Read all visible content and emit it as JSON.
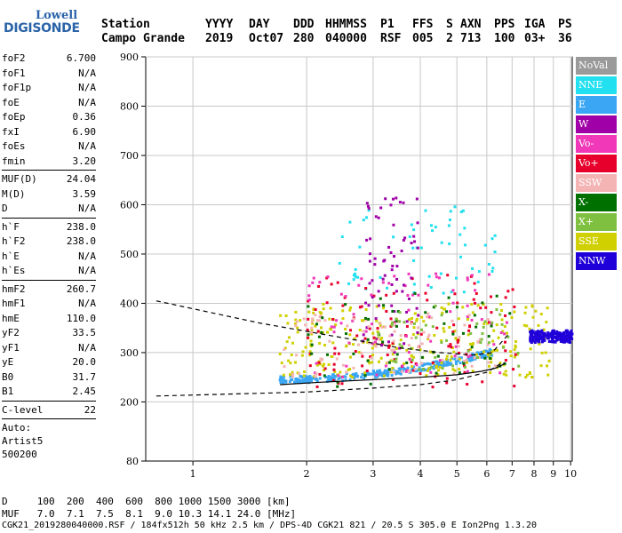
{
  "logo": {
    "line1": "Lowell",
    "line2": "DIGISONDE"
  },
  "header": {
    "labels": [
      "Station",
      "YYYY",
      "DAY",
      "DDD",
      "HHMMSS",
      "P1",
      "FFS",
      "S",
      "AXN",
      "PPS",
      "IGA",
      "PS"
    ],
    "values": [
      "Campo Grande",
      "2019",
      "Oct07",
      "280",
      "040000",
      "RSF",
      "005",
      "2",
      "713",
      "100",
      "03+",
      "36"
    ]
  },
  "params_group1": [
    {
      "name": "foF2",
      "value": "6.700"
    },
    {
      "name": "foF1",
      "value": "N/A"
    },
    {
      "name": "foF1p",
      "value": "N/A"
    },
    {
      "name": "foE",
      "value": "N/A"
    },
    {
      "name": "foEp",
      "value": "0.36"
    },
    {
      "name": "fxI",
      "value": "6.90"
    },
    {
      "name": "foEs",
      "value": "N/A"
    },
    {
      "name": "fmin",
      "value": "3.20"
    }
  ],
  "params_group2": [
    {
      "name": "MUF(D)",
      "value": "24.04"
    },
    {
      "name": "M(D)",
      "value": "3.59"
    },
    {
      "name": "D",
      "value": "N/A"
    }
  ],
  "params_group3": [
    {
      "name": "h`F",
      "value": "238.0"
    },
    {
      "name": "h`F2",
      "value": "238.0"
    },
    {
      "name": "h`E",
      "value": "N/A"
    },
    {
      "name": "h`Es",
      "value": "N/A"
    }
  ],
  "params_group4": [
    {
      "name": "hmF2",
      "value": "260.7"
    },
    {
      "name": "hmF1",
      "value": "N/A"
    },
    {
      "name": "hmE",
      "value": "110.0"
    },
    {
      "name": "yF2",
      "value": "33.5"
    },
    {
      "name": "yF1",
      "value": "N/A"
    },
    {
      "name": "yE",
      "value": "20.0"
    },
    {
      "name": "B0",
      "value": "31.7"
    },
    {
      "name": "B1",
      "value": "2.45"
    }
  ],
  "params_group5": [
    {
      "name": "C-level",
      "value": "22"
    }
  ],
  "autoscaling": {
    "line1": "Auto:",
    "line2": "Artist5",
    "line3": "500200"
  },
  "legend": [
    {
      "label": "NoVal",
      "color": "#9a9a9a"
    },
    {
      "label": "NNE",
      "color": "#22e0f0"
    },
    {
      "label": "E",
      "color": "#3aa6f4"
    },
    {
      "label": "W",
      "color": "#a000a8"
    },
    {
      "label": "Vo-",
      "color": "#f038b8"
    },
    {
      "label": "Vo+",
      "color": "#e8002c"
    },
    {
      "label": "SSW",
      "color": "#f4b4b4"
    },
    {
      "label": "X-",
      "color": "#007000"
    },
    {
      "label": "X+",
      "color": "#80c040"
    },
    {
      "label": "SSE",
      "color": "#d0d000"
    },
    {
      "label": "NNW",
      "color": "#2000d8"
    }
  ],
  "footer": {
    "d_row": "D     100  200  400  600  800 1000 1500 3000 [km]",
    "muf_row": "MUF   7.0  7.1  7.5  8.1  9.0 10.3 14.1 24.0 [MHz]",
    "file_row": "CGK21_2019280040000.RSF / 184fx512h 50 kHz 2.5 km / DPS-4D CGK21 821 / 20.5 S 305.0 E Ion2Png 1.3.20"
  },
  "chart_data": {
    "type": "scatter",
    "xlabel": "",
    "ylabel": "",
    "xlim": [
      0.75,
      10.1
    ],
    "ylim": [
      80,
      900
    ],
    "x_ticks": [
      1,
      2,
      3,
      4,
      5,
      6,
      7,
      8,
      9,
      10
    ],
    "y_ticks": [
      80,
      200,
      300,
      400,
      500,
      600,
      700,
      800,
      900
    ],
    "grid": true,
    "x_scale": "log",
    "scatter_regions": [
      {
        "series": "E",
        "x_range": [
          1.7,
          6.2
        ],
        "y_range": [
          238,
          340
        ],
        "density": 320
      },
      {
        "series": "NNE",
        "x_range": [
          2.4,
          6.4
        ],
        "y_range": [
          420,
          600
        ],
        "density": 60
      },
      {
        "series": "SSE",
        "x_range": [
          1.7,
          8.8
        ],
        "y_range": [
          250,
          400
        ],
        "density": 280
      },
      {
        "series": "Vo+",
        "x_range": [
          2.0,
          7.2
        ],
        "y_range": [
          230,
          460
        ],
        "density": 120
      },
      {
        "series": "Vo-",
        "x_range": [
          2.0,
          6.8
        ],
        "y_range": [
          250,
          460
        ],
        "density": 80
      },
      {
        "series": "W",
        "x_range": [
          2.8,
          4.0
        ],
        "y_range": [
          300,
          620
        ],
        "density": 70
      },
      {
        "series": "SSW",
        "x_range": [
          1.7,
          6.5
        ],
        "y_range": [
          250,
          380
        ],
        "density": 90
      },
      {
        "series": "X-",
        "x_range": [
          2.0,
          7.0
        ],
        "y_range": [
          230,
          420
        ],
        "density": 60
      },
      {
        "series": "X+",
        "x_range": [
          3.0,
          7.5
        ],
        "y_range": [
          260,
          400
        ],
        "density": 50
      },
      {
        "series": "NNW",
        "x_range": [
          7.8,
          10.1
        ],
        "y_range": [
          320,
          345
        ],
        "density": 200
      }
    ],
    "profile_curve": {
      "x": [
        1.7,
        2.2,
        3.0,
        4.0,
        5.0,
        5.8,
        6.3,
        6.6,
        6.7
      ],
      "y": [
        235,
        240,
        245,
        250,
        255,
        262,
        268,
        275,
        280
      ]
    },
    "upper_dashed": {
      "x": [
        0.8,
        1.5,
        2.5,
        3.5,
        4.5,
        5.5,
        6.2,
        6.9
      ],
      "y": [
        405,
        360,
        330,
        310,
        300,
        295,
        300,
        340
      ]
    },
    "lower_dashed": {
      "x": [
        0.8,
        2.0,
        3.0,
        4.0,
        5.0,
        6.0,
        6.6
      ],
      "y": [
        212,
        220,
        228,
        235,
        245,
        260,
        280
      ]
    }
  }
}
